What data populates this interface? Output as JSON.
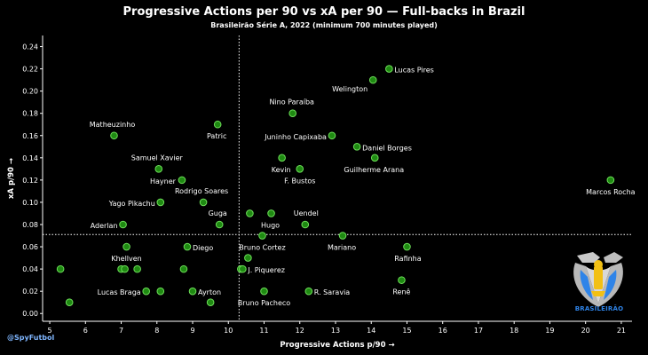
{
  "header": {
    "title": "Progressive Actions per 90 vs xA per 90 — Full-backs in Brazil",
    "subtitle": "Brasileirão Série A, 2022 (minimum 700 minutes played)"
  },
  "credit": "@SpyFutbol",
  "logo": {
    "name": "brasileirao-logo",
    "text": "BRASILEIRÃO"
  },
  "chart_data": {
    "type": "scatter",
    "title": "Progressive Actions per 90 vs xA per 90 — Full-backs in Brazil",
    "subtitle": "Brasileirão Série A, 2022 (minimum 700 minutes played)",
    "xlabel": "Progressive Actions p/90 →",
    "ylabel": "xA p/90 →",
    "xlim": [
      4.8,
      21.3
    ],
    "ylim": [
      -0.007,
      0.25
    ],
    "xticks": [
      5,
      6,
      7,
      8,
      9,
      10,
      11,
      12,
      13,
      14,
      15,
      16,
      17,
      18,
      19,
      20,
      21
    ],
    "yticks": [
      0.0,
      0.02,
      0.04,
      0.06,
      0.08,
      0.1,
      0.12,
      0.14,
      0.16,
      0.18,
      0.2,
      0.22,
      0.24
    ],
    "reference_lines": {
      "x": 10.3,
      "y": 0.071
    },
    "colors": {
      "point_fill": "#1f8a12",
      "point_stroke": "#6ee05a",
      "axis": "#ffffff",
      "reference": "#ffffff"
    },
    "points": [
      {
        "x": 14.5,
        "y": 0.22,
        "label": "Lucas Pires"
      },
      {
        "x": 14.05,
        "y": 0.21,
        "label": "Welington"
      },
      {
        "x": 11.8,
        "y": 0.18,
        "label": "Nino Paraíba"
      },
      {
        "x": 9.7,
        "y": 0.17,
        "label": "Patric"
      },
      {
        "x": 6.8,
        "y": 0.16,
        "label": "Matheuzinho"
      },
      {
        "x": 12.9,
        "y": 0.16,
        "label": "Juninho Capixaba"
      },
      {
        "x": 13.6,
        "y": 0.15,
        "label": "Daniel Borges"
      },
      {
        "x": 14.1,
        "y": 0.14,
        "label": "Guilherme Arana"
      },
      {
        "x": 11.5,
        "y": 0.14,
        "label": "Kevin"
      },
      {
        "x": 8.05,
        "y": 0.13,
        "label": "Samuel Xavier"
      },
      {
        "x": 12.0,
        "y": 0.13,
        "label": "F. Bustos"
      },
      {
        "x": 8.7,
        "y": 0.12,
        "label": "Hayner"
      },
      {
        "x": 20.7,
        "y": 0.12,
        "label": "Marcos Rocha"
      },
      {
        "x": 8.1,
        "y": 0.1,
        "label": "Yago Pikachu"
      },
      {
        "x": 9.3,
        "y": 0.1,
        "label": "Rodrigo Soares"
      },
      {
        "x": 10.6,
        "y": 0.09,
        "label": ""
      },
      {
        "x": 11.2,
        "y": 0.09,
        "label": "Hugo"
      },
      {
        "x": 7.05,
        "y": 0.08,
        "label": "Aderlan"
      },
      {
        "x": 9.75,
        "y": 0.08,
        "label": "Guga"
      },
      {
        "x": 12.15,
        "y": 0.08,
        "label": "Uendel"
      },
      {
        "x": 10.95,
        "y": 0.07,
        "label": "Bruno Cortez"
      },
      {
        "x": 13.2,
        "y": 0.07,
        "label": "Mariano"
      },
      {
        "x": 7.15,
        "y": 0.06,
        "label": "Khellven"
      },
      {
        "x": 8.85,
        "y": 0.06,
        "label": "Diego"
      },
      {
        "x": 15.0,
        "y": 0.06,
        "label": "Rafinha"
      },
      {
        "x": 10.55,
        "y": 0.05,
        "label": ""
      },
      {
        "x": 5.3,
        "y": 0.04,
        "label": ""
      },
      {
        "x": 7.0,
        "y": 0.04,
        "label": ""
      },
      {
        "x": 7.1,
        "y": 0.04,
        "label": ""
      },
      {
        "x": 7.45,
        "y": 0.04,
        "label": ""
      },
      {
        "x": 8.75,
        "y": 0.04,
        "label": ""
      },
      {
        "x": 10.35,
        "y": 0.04,
        "label": ""
      },
      {
        "x": 10.4,
        "y": 0.04,
        "label": "J. Piquerez"
      },
      {
        "x": 14.85,
        "y": 0.03,
        "label": "Renê"
      },
      {
        "x": 7.7,
        "y": 0.02,
        "label": "Lucas Braga"
      },
      {
        "x": 8.1,
        "y": 0.02,
        "label": ""
      },
      {
        "x": 9.0,
        "y": 0.02,
        "label": "Ayrton"
      },
      {
        "x": 11.0,
        "y": 0.02,
        "label": "Bruno Pacheco"
      },
      {
        "x": 12.25,
        "y": 0.02,
        "label": "R. Saravia"
      },
      {
        "x": 5.55,
        "y": 0.01,
        "label": ""
      },
      {
        "x": 9.5,
        "y": 0.01,
        "label": ""
      }
    ]
  }
}
